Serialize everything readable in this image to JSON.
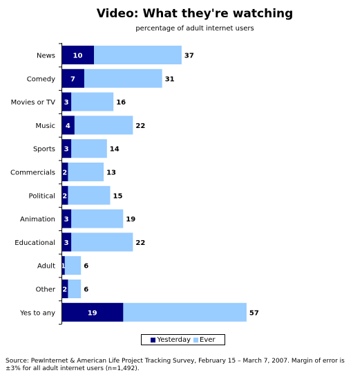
{
  "title": "Video: What they're watching",
  "subtitle": "percentage of adult internet users",
  "legend": {
    "yesterday": "Yesterday",
    "ever": "Ever"
  },
  "source": "Source: PewInternet & American Life Project Tracking Survey, February 15 – March 7, 2007. Margin of error is ±3% for all adult internet users (n=1,492).",
  "colors": {
    "yesterday": "#000080",
    "ever": "#99ccff"
  },
  "chart_data": {
    "type": "bar",
    "orientation": "horizontal",
    "stacked": true,
    "categories": [
      "News",
      "Comedy",
      "Movies or TV",
      "Music",
      "Sports",
      "Commercials",
      "Political",
      "Animation",
      "Educational",
      "Adult",
      "Other",
      "Yes to any"
    ],
    "series": [
      {
        "name": "Yesterday",
        "values": [
          10,
          7,
          3,
          4,
          3,
          2,
          2,
          3,
          3,
          1,
          2,
          19
        ]
      },
      {
        "name": "Ever",
        "values": [
          37,
          31,
          16,
          22,
          14,
          13,
          15,
          19,
          22,
          6,
          6,
          57
        ]
      }
    ],
    "xlim": [
      0,
      100
    ],
    "grid": false,
    "legend_position": "bottom"
  }
}
